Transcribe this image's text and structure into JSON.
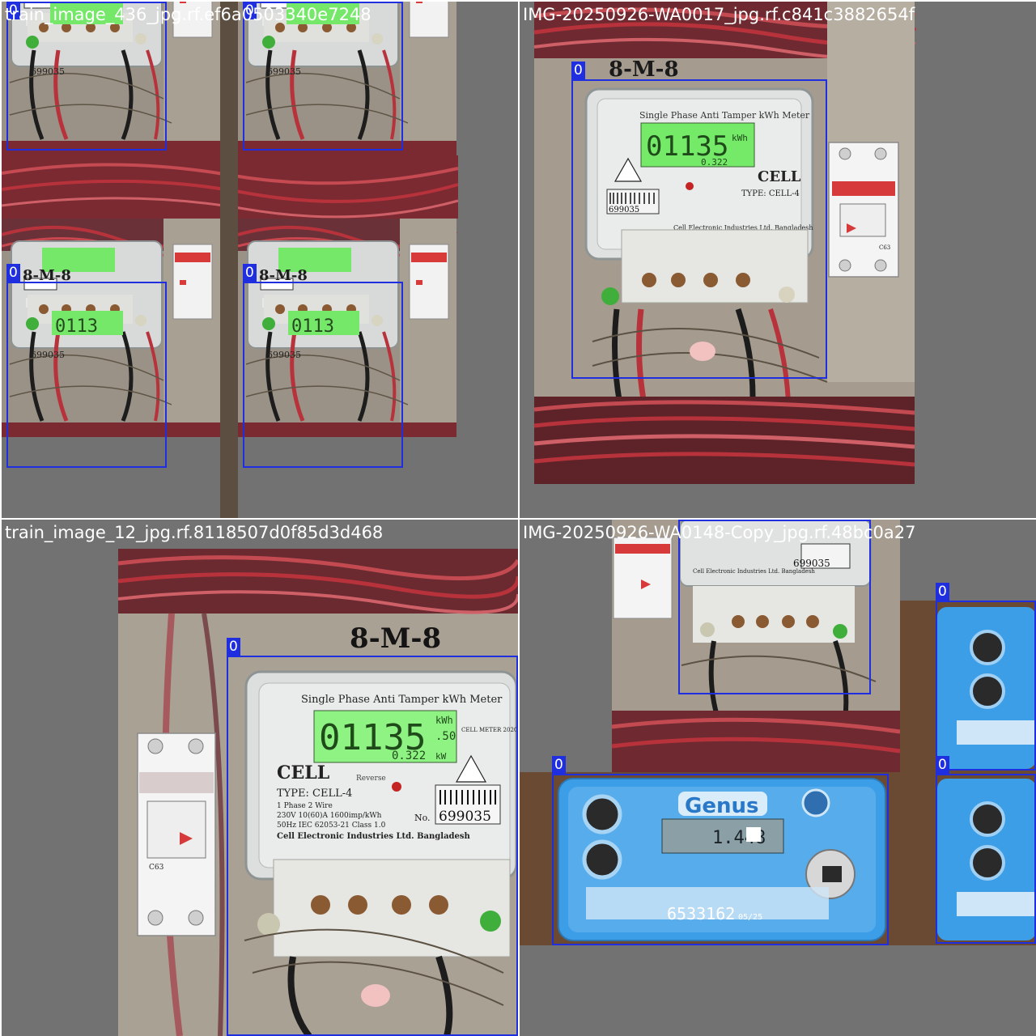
{
  "tiles": [
    {
      "title": "train_image_436_jpg.rf.ef6a0503340e7248",
      "boxes": [
        {
          "label": "0"
        },
        {
          "label": "0"
        },
        {
          "label": "0"
        },
        {
          "label": "0"
        }
      ]
    },
    {
      "title": "IMG-20250926-WA0017_jpg.rf.c841c3882654f",
      "boxes": [
        {
          "label": "0"
        }
      ]
    },
    {
      "title": "train_image_12_jpg.rf.8118507d0f85d3d468",
      "boxes": [
        {
          "label": "0"
        }
      ]
    },
    {
      "title": "IMG-20250926-WA0148-Copy_jpg.rf.48bc0a27",
      "boxes": [
        {
          "label": "0"
        },
        {
          "label": "0"
        },
        {
          "label": "0"
        },
        {
          "label": "0"
        }
      ]
    }
  ],
  "meter_cell": {
    "heading": "Single Phase Anti Tamper kWh Meter",
    "reading": "01135",
    "reading_decimal": ".50",
    "unit": "kWh",
    "sub_reading": "0.322",
    "sub_unit": "kW",
    "brand": "CELL",
    "model": "TYPE: CELL-4",
    "reverse": "Reverse",
    "spec_line1": "1 Phase   2 Wire",
    "spec_line2": "230V   10(60)A   1600imp/kWh",
    "spec_line3": "50Hz   IEC 62053-21   Class 1.0",
    "maker": "Cell Electronic Industries Ltd. Bangladesh",
    "serial_prefix": "No.",
    "serial": "699035",
    "badge": "CELL METER 2020",
    "breaker": "C63"
  },
  "meter_genus": {
    "brand": "Genus",
    "reading": "1.448",
    "serial": "6533162",
    "serial_suffix": "05/25"
  },
  "colors": {
    "box": "#1f2fe0",
    "canvas": "#727272",
    "lcd": "#6ef06a",
    "genus_blue": "#3d9ee8",
    "wire_red": "#b8323c"
  }
}
